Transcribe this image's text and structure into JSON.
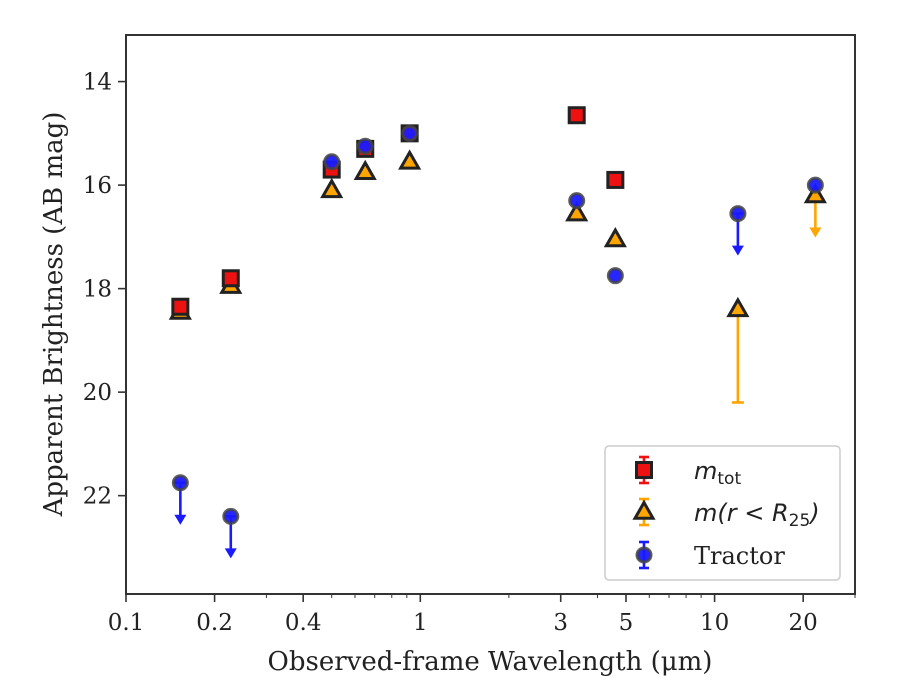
{
  "chart_data": {
    "type": "scatter",
    "title": "",
    "xlabel": "Observed-frame Wavelength (μm)",
    "ylabel": "Apparent Brightness (AB mag)",
    "xscale": "log",
    "xlim": [
      0.1,
      30
    ],
    "ylim": [
      23.9,
      13.1
    ],
    "y_inverted": true,
    "x_ticks": [
      {
        "value": 0.1,
        "label": "0.1"
      },
      {
        "value": 0.2,
        "label": "0.2"
      },
      {
        "value": 0.4,
        "label": "0.4"
      },
      {
        "value": 1,
        "label": "1"
      },
      {
        "value": 3,
        "label": "3"
      },
      {
        "value": 5,
        "label": "5"
      },
      {
        "value": 10,
        "label": "10"
      },
      {
        "value": 20,
        "label": "20"
      }
    ],
    "y_ticks": [
      {
        "value": 14,
        "label": "14"
      },
      {
        "value": 16,
        "label": "16"
      },
      {
        "value": 18,
        "label": "18"
      },
      {
        "value": 20,
        "label": "20"
      },
      {
        "value": 22,
        "label": "22"
      }
    ],
    "grid": false,
    "legend_position": "lower-right",
    "series": [
      {
        "name": "m_tot",
        "legend_label": {
          "main": "m",
          "sub": "tot"
        },
        "marker": "square",
        "color": "#ee1111",
        "edge_color": "#222222",
        "points": [
          {
            "x": 0.153,
            "y": 18.35
          },
          {
            "x": 0.227,
            "y": 17.8
          },
          {
            "x": 0.5,
            "y": 15.7
          },
          {
            "x": 0.65,
            "y": 15.3
          },
          {
            "x": 0.92,
            "y": 15.0
          },
          {
            "x": 3.4,
            "y": 14.65
          },
          {
            "x": 4.6,
            "y": 15.9
          }
        ]
      },
      {
        "name": "m(r < R_25)",
        "legend_label": {
          "main": "m(r < R",
          "sub": "25",
          "tail": ")"
        },
        "marker": "triangle",
        "color": "#ffa500",
        "edge_color": "#222222",
        "points": [
          {
            "x": 0.153,
            "y": 18.45
          },
          {
            "x": 0.227,
            "y": 17.95
          },
          {
            "x": 0.5,
            "y": 16.1
          },
          {
            "x": 0.65,
            "y": 15.75
          },
          {
            "x": 0.92,
            "y": 15.55
          },
          {
            "x": 3.4,
            "y": 16.55
          },
          {
            "x": 4.6,
            "y": 17.05
          },
          {
            "x": 12.0,
            "y": 18.4,
            "err_low": 1.8
          },
          {
            "x": 22.0,
            "y": 16.2,
            "upper_limit": true
          }
        ]
      },
      {
        "name": "Tractor",
        "marker": "circle",
        "color": "#1a1aff",
        "edge_color": "#444444",
        "points": [
          {
            "x": 0.153,
            "y": 21.75,
            "upper_limit": true
          },
          {
            "x": 0.227,
            "y": 22.4,
            "upper_limit": true
          },
          {
            "x": 0.5,
            "y": 15.55
          },
          {
            "x": 0.65,
            "y": 15.25
          },
          {
            "x": 0.92,
            "y": 15.0
          },
          {
            "x": 3.4,
            "y": 16.3
          },
          {
            "x": 4.6,
            "y": 17.75
          },
          {
            "x": 12.0,
            "y": 16.55,
            "upper_limit": true
          },
          {
            "x": 22.0,
            "y": 16.0
          }
        ]
      }
    ],
    "legend_entries": [
      {
        "series": "m_tot",
        "label": "m_tot"
      },
      {
        "series": "m(r < R_25)",
        "label": "m(r < R_25)"
      },
      {
        "series": "Tractor",
        "label": "Tractor"
      }
    ]
  }
}
